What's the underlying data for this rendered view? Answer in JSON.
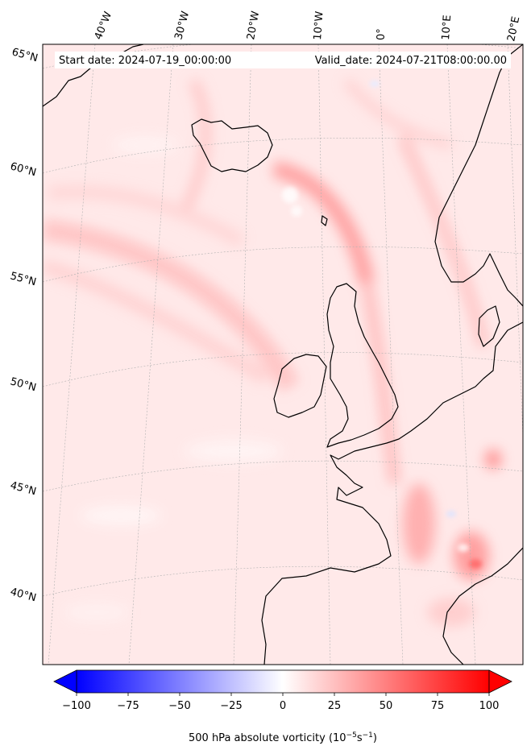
{
  "header": {
    "start_date": "Start date: 2024-07-19_00:00:00",
    "valid_date": "Valid_date: 2024-07-21T08:00:00.00"
  },
  "map": {
    "projection": "lambert-conformal",
    "field": "vorticity-shading",
    "background_color": "#ffe9e9",
    "coastline_color": "#000000",
    "gridline_color": "#b0b0b0",
    "lon_labels": [
      "40°W",
      "30°W",
      "20°W",
      "10°W",
      "0°",
      "10°E",
      "20°E"
    ],
    "lat_labels": [
      "65°N",
      "60°N",
      "55°N",
      "50°N",
      "45°N",
      "40°N"
    ]
  },
  "colorbar": {
    "label": "500 hPa absolute vorticity (10",
    "label_exp1": "−5",
    "label_mid": "s",
    "label_exp2": "−1",
    "label_end": ")",
    "min": -100,
    "max": 100,
    "ticks": [
      "−100",
      "−75",
      "−50",
      "−25",
      "0",
      "25",
      "50",
      "75",
      "100"
    ],
    "low_color": "#0000ff",
    "mid_color": "#ffffff",
    "high_color": "#ff0000"
  }
}
